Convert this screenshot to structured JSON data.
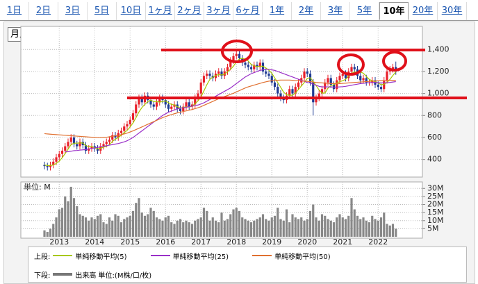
{
  "tabs": [
    "1日",
    "2日",
    "3日",
    "5日",
    "10日",
    "1ヶ月",
    "2ヶ月",
    "3ヶ月",
    "6ヶ月",
    "1年",
    "2年",
    "3年",
    "5年",
    "10年",
    "20年",
    "30年"
  ],
  "selected_tab_index": 13,
  "period_select": "月足",
  "legend": {
    "upper_label": "上段:",
    "lower_label": "下段:"
  },
  "chart_data": [
    {
      "type": "candlestick",
      "up_color": "#e8202a",
      "down_color": "#1f3a93",
      "ylim": [
        240,
        1610
      ],
      "yticks": [
        400,
        600,
        800,
        {
          "value": 1000,
          "label": "1,000"
        },
        {
          "value": 1200,
          "label": "1,200"
        },
        {
          "value": 1400,
          "label": "1,400"
        }
      ],
      "grid": true,
      "open": [
        350,
        340,
        330,
        350,
        380,
        420,
        450,
        480,
        520,
        560,
        600,
        540,
        520,
        560,
        530,
        480,
        500,
        520,
        500,
        480,
        520,
        540,
        560,
        580,
        620,
        600,
        640,
        660,
        700,
        720,
        760,
        820,
        900,
        960,
        920,
        980,
        940,
        900,
        880,
        920,
        960,
        940,
        900,
        860,
        880,
        900,
        860,
        840,
        880,
        920,
        880,
        900,
        960,
        1000,
        1100,
        1160,
        1180,
        1160,
        1140,
        1180,
        1200,
        1160,
        1200,
        1240,
        1300,
        1340,
        1360,
        1320,
        1280,
        1260,
        1240,
        1220,
        1260,
        1240,
        1280,
        1200,
        1180,
        1160,
        1100,
        1060,
        1000,
        960,
        940,
        980,
        1040,
        1000,
        1060,
        1100,
        1140,
        1200,
        1180,
        1100,
        920,
        960,
        1000,
        1040,
        1100,
        1140,
        1080,
        1040,
        1120,
        1160,
        1180,
        1140,
        1200,
        1240,
        1220,
        1160,
        1120,
        1140,
        1100,
        1100,
        1120,
        1080,
        1060,
        1040,
        1120,
        1200,
        1220,
        1240
      ],
      "high": [
        380,
        370,
        380,
        410,
        450,
        480,
        510,
        550,
        590,
        630,
        630,
        570,
        590,
        590,
        560,
        530,
        550,
        550,
        530,
        550,
        570,
        590,
        610,
        650,
        650,
        670,
        690,
        730,
        750,
        790,
        850,
        930,
        990,
        990,
        1010,
        1010,
        970,
        930,
        950,
        990,
        990,
        970,
        930,
        910,
        930,
        930,
        890,
        910,
        950,
        950,
        930,
        990,
        1030,
        1130,
        1190,
        1210,
        1210,
        1190,
        1210,
        1230,
        1230,
        1230,
        1270,
        1330,
        1370,
        1400,
        1390,
        1350,
        1310,
        1290,
        1270,
        1290,
        1290,
        1310,
        1310,
        1230,
        1210,
        1190,
        1130,
        1090,
        1030,
        990,
        1010,
        1070,
        1070,
        1090,
        1130,
        1170,
        1230,
        1230,
        1210,
        1130,
        990,
        1030,
        1070,
        1130,
        1170,
        1170,
        1110,
        1150,
        1190,
        1210,
        1210,
        1230,
        1270,
        1270,
        1250,
        1190,
        1170,
        1170,
        1130,
        1150,
        1150,
        1110,
        1090,
        1150,
        1230,
        1250,
        1270,
        1290
      ],
      "low": [
        310,
        300,
        300,
        320,
        350,
        390,
        420,
        450,
        490,
        530,
        510,
        490,
        490,
        500,
        450,
        450,
        470,
        470,
        450,
        450,
        490,
        510,
        530,
        550,
        570,
        570,
        610,
        630,
        670,
        690,
        730,
        790,
        870,
        890,
        890,
        910,
        870,
        850,
        850,
        890,
        910,
        870,
        830,
        830,
        850,
        830,
        810,
        810,
        850,
        850,
        850,
        870,
        930,
        970,
        1070,
        1130,
        1130,
        1110,
        1110,
        1150,
        1130,
        1130,
        1170,
        1210,
        1270,
        1310,
        1290,
        1250,
        1230,
        1210,
        1190,
        1190,
        1210,
        1210,
        1170,
        1150,
        1130,
        1070,
        1030,
        970,
        930,
        910,
        910,
        950,
        970,
        970,
        1030,
        1070,
        1110,
        1150,
        1070,
        800,
        890,
        930,
        970,
        1010,
        1070,
        1050,
        1010,
        1010,
        1090,
        1130,
        1110,
        1110,
        1170,
        1190,
        1130,
        1090,
        1090,
        1070,
        1070,
        1070,
        1050,
        1030,
        1010,
        1010,
        1090,
        1170,
        1190,
        1170
      ],
      "close": [
        340,
        330,
        350,
        380,
        420,
        450,
        480,
        520,
        560,
        600,
        540,
        520,
        560,
        530,
        480,
        500,
        520,
        500,
        480,
        520,
        540,
        560,
        580,
        620,
        600,
        640,
        660,
        700,
        720,
        760,
        820,
        900,
        960,
        920,
        980,
        940,
        900,
        880,
        920,
        960,
        940,
        900,
        860,
        880,
        900,
        860,
        840,
        880,
        920,
        880,
        900,
        960,
        1000,
        1100,
        1160,
        1180,
        1160,
        1140,
        1180,
        1200,
        1160,
        1200,
        1240,
        1300,
        1340,
        1360,
        1320,
        1280,
        1260,
        1240,
        1220,
        1260,
        1240,
        1280,
        1200,
        1180,
        1160,
        1100,
        1060,
        1000,
        960,
        940,
        980,
        1040,
        1000,
        1060,
        1100,
        1140,
        1200,
        1180,
        1100,
        920,
        960,
        1000,
        1040,
        1100,
        1140,
        1080,
        1040,
        1120,
        1160,
        1180,
        1140,
        1200,
        1240,
        1220,
        1160,
        1120,
        1140,
        1100,
        1100,
        1120,
        1080,
        1060,
        1040,
        1120,
        1200,
        1220,
        1240,
        1200
      ],
      "series": [
        {
          "name": "単純移動平均(5)",
          "color": "#a8c800",
          "values": [
            350,
            345,
            345,
            350,
            364,
            384,
            416,
            454,
            494,
            534,
            548,
            548,
            550,
            550,
            526,
            516,
            518,
            506,
            496,
            502,
            512,
            520,
            536,
            564,
            584,
            600,
            620,
            644,
            664,
            696,
            732,
            780,
            832,
            872,
            900,
            926,
            940,
            926,
            928,
            920,
            928,
            932,
            916,
            900,
            896,
            880,
            868,
            872,
            880,
            876,
            884,
            908,
            932,
            968,
            1024,
            1080,
            1128,
            1148,
            1164,
            1172,
            1168,
            1176,
            1196,
            1220,
            1248,
            1288,
            1312,
            1320,
            1312,
            1296,
            1264,
            1252,
            1244,
            1248,
            1248,
            1232,
            1212,
            1184,
            1140,
            1100,
            1056,
            1012,
            988,
            984,
            984,
            1004,
            1036,
            1068,
            1100,
            1136,
            1144,
            1108,
            1072,
            1032,
            1004,
            1004,
            1048,
            1072,
            1080,
            1096,
            1108,
            1116,
            1128,
            1160,
            1184,
            1196,
            1196,
            1196,
            1184,
            1156,
            1128,
            1116,
            1108,
            1096,
            1080,
            1084,
            1100,
            1128,
            1164,
            1196
          ]
        },
        {
          "name": "単純移動平均(25)",
          "color": "#9a30c8",
          "values": [
            null,
            null,
            null,
            null,
            null,
            null,
            null,
            470,
            470,
            475,
            480,
            482,
            485,
            488,
            490,
            495,
            500,
            505,
            510,
            515,
            520,
            525,
            530,
            535,
            540,
            545,
            552,
            560,
            570,
            585,
            600,
            620,
            640,
            660,
            680,
            700,
            720,
            740,
            760,
            780,
            800,
            815,
            830,
            840,
            850,
            860,
            865,
            870,
            875,
            880,
            885,
            890,
            895,
            905,
            915,
            930,
            945,
            960,
            975,
            990,
            1005,
            1020,
            1035,
            1050,
            1070,
            1090,
            1110,
            1130,
            1150,
            1165,
            1180,
            1190,
            1200,
            1210,
            1215,
            1220,
            1220,
            1215,
            1210,
            1200,
            1190,
            1180,
            1170,
            1160,
            1150,
            1140,
            1130,
            1120,
            1110,
            1100,
            1095,
            1085,
            1075,
            1065,
            1060,
            1060,
            1060,
            1060,
            1058,
            1058,
            1060,
            1062,
            1065,
            1070,
            1075,
            1080,
            1085,
            1090,
            1092,
            1095,
            1098,
            1100,
            1100,
            1098,
            1096,
            1096,
            1098,
            1100,
            1104,
            1108
          ]
        },
        {
          "name": "単純移動平均(50)",
          "color": "#e07030",
          "values": [
            635,
            632,
            630,
            628,
            626,
            624,
            622,
            620,
            618,
            616,
            614,
            612,
            610,
            608,
            606,
            604,
            602,
            600,
            598,
            598,
            600,
            602,
            606,
            610,
            615,
            620,
            626,
            632,
            640,
            650,
            660,
            672,
            684,
            696,
            708,
            720,
            732,
            744,
            756,
            768,
            780,
            790,
            800,
            808,
            816,
            824,
            830,
            836,
            842,
            848,
            854,
            862,
            870,
            880,
            892,
            904,
            916,
            928,
            940,
            952,
            962,
            972,
            982,
            992,
            1002,
            1014,
            1026,
            1038,
            1050,
            1060,
            1068,
            1076,
            1084,
            1092,
            1100,
            1106,
            1112,
            1116,
            1118,
            1120,
            1122,
            1122,
            1122,
            1122,
            1120,
            1118,
            1116,
            1114,
            1112,
            1110,
            1108,
            1104,
            1100,
            1098,
            1096,
            1094,
            1092,
            1090,
            1090,
            1090,
            1090,
            1092,
            1094,
            1096,
            1098,
            1100,
            1102,
            1104,
            1106,
            1108,
            1110,
            1112,
            1114,
            1115,
            1116,
            1117,
            1118,
            1119,
            1120,
            1120
          ]
        }
      ]
    },
    {
      "type": "bar",
      "unit_label": "単位: M",
      "color": "#888888",
      "ylim": [
        0,
        34
      ],
      "yticks": [
        {
          "value": 5,
          "label": "5M"
        },
        {
          "value": 10,
          "label": "10M"
        },
        {
          "value": 15,
          "label": "15M"
        },
        {
          "value": 20,
          "label": "20M"
        },
        {
          "value": 25,
          "label": "25M"
        },
        {
          "value": 30,
          "label": "30M"
        }
      ],
      "grid": true,
      "categories": [
        null,
        null,
        null,
        null,
        null,
        "2013",
        null,
        null,
        null,
        null,
        null,
        null,
        null,
        null,
        null,
        null,
        null,
        "2014",
        null,
        null,
        null,
        null,
        null,
        null,
        null,
        null,
        null,
        null,
        null,
        "2015",
        null,
        null,
        null,
        null,
        null,
        null,
        null,
        null,
        null,
        null,
        null,
        "2016",
        null,
        null,
        null,
        null,
        null,
        null,
        null,
        null,
        null,
        null,
        null,
        "2017",
        null,
        null,
        null,
        null,
        null,
        null,
        null,
        null,
        null,
        null,
        null,
        "2018",
        null,
        null,
        null,
        null,
        null,
        null,
        null,
        null,
        null,
        null,
        null,
        "2019",
        null,
        null,
        null,
        null,
        null,
        null,
        null,
        null,
        null,
        null,
        null,
        "2020",
        null,
        null,
        null,
        null,
        null,
        null,
        null,
        null,
        null,
        null,
        null,
        "2021",
        null,
        null,
        null,
        null,
        null,
        null,
        null,
        null,
        null,
        null,
        null,
        "2022",
        null,
        null,
        null,
        null,
        null,
        null
      ],
      "series": [
        {
          "name": "出来高 単位:(M株/口/枚)",
          "color": "#777777",
          "values": [
            4,
            3,
            5,
            8,
            12,
            17,
            18,
            25,
            22,
            31,
            24,
            19,
            14,
            13,
            12,
            10,
            12,
            11,
            13,
            14,
            9,
            8,
            12,
            10,
            14,
            13,
            9,
            11,
            12,
            13,
            16,
            21,
            24,
            15,
            13,
            14,
            18,
            16,
            12,
            11,
            10,
            12,
            13,
            9,
            8,
            10,
            11,
            9,
            10,
            9,
            8,
            10,
            11,
            12,
            18,
            16,
            10,
            12,
            10,
            9,
            15,
            10,
            11,
            14,
            17,
            18,
            16,
            12,
            11,
            10,
            9,
            10,
            11,
            12,
            14,
            11,
            10,
            12,
            13,
            18,
            11,
            10,
            17,
            9,
            14,
            12,
            11,
            12,
            10,
            11,
            16,
            20,
            12,
            10,
            14,
            13,
            11,
            10,
            9,
            12,
            14,
            12,
            11,
            13,
            24,
            17,
            13,
            11,
            12,
            10,
            9,
            13,
            11,
            10,
            12,
            15,
            8,
            7,
            8,
            5
          ]
        }
      ]
    }
  ]
}
